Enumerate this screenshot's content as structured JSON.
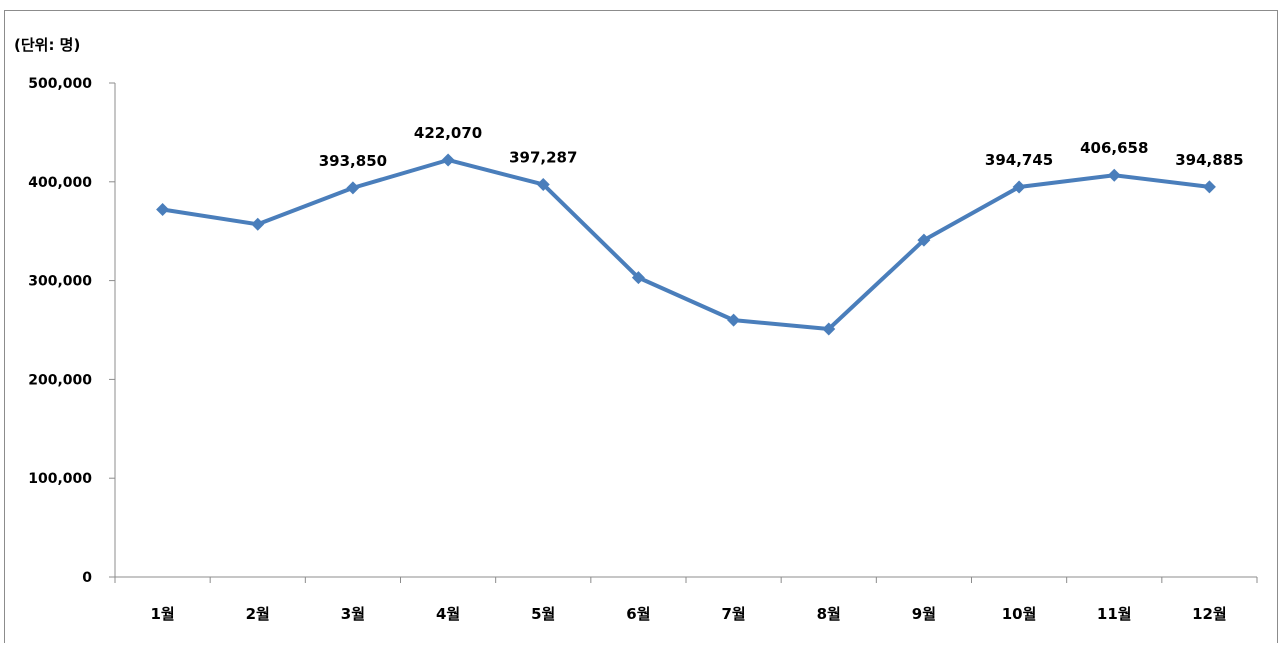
{
  "chart_data": {
    "type": "line",
    "unit_label": "(단위: 명)",
    "categories": [
      "1월",
      "2월",
      "3월",
      "4월",
      "5월",
      "6월",
      "7월",
      "8월",
      "9월",
      "10월",
      "11월",
      "12월"
    ],
    "values": [
      372000,
      357000,
      393850,
      422070,
      397287,
      303000,
      260000,
      251000,
      341000,
      394745,
      406658,
      394885
    ],
    "data_labels": [
      "",
      "",
      "393,850",
      "422,070",
      "397,287",
      "",
      "",
      "",
      "",
      "394,745",
      "406,658",
      "394,885"
    ],
    "yticks": [
      "0",
      "100,000",
      "200,000",
      "300,000",
      "400,000",
      "500,000"
    ],
    "ylim": [
      0,
      500000
    ],
    "grid": false,
    "legend": "none",
    "line_color": "#4a7ebb"
  }
}
